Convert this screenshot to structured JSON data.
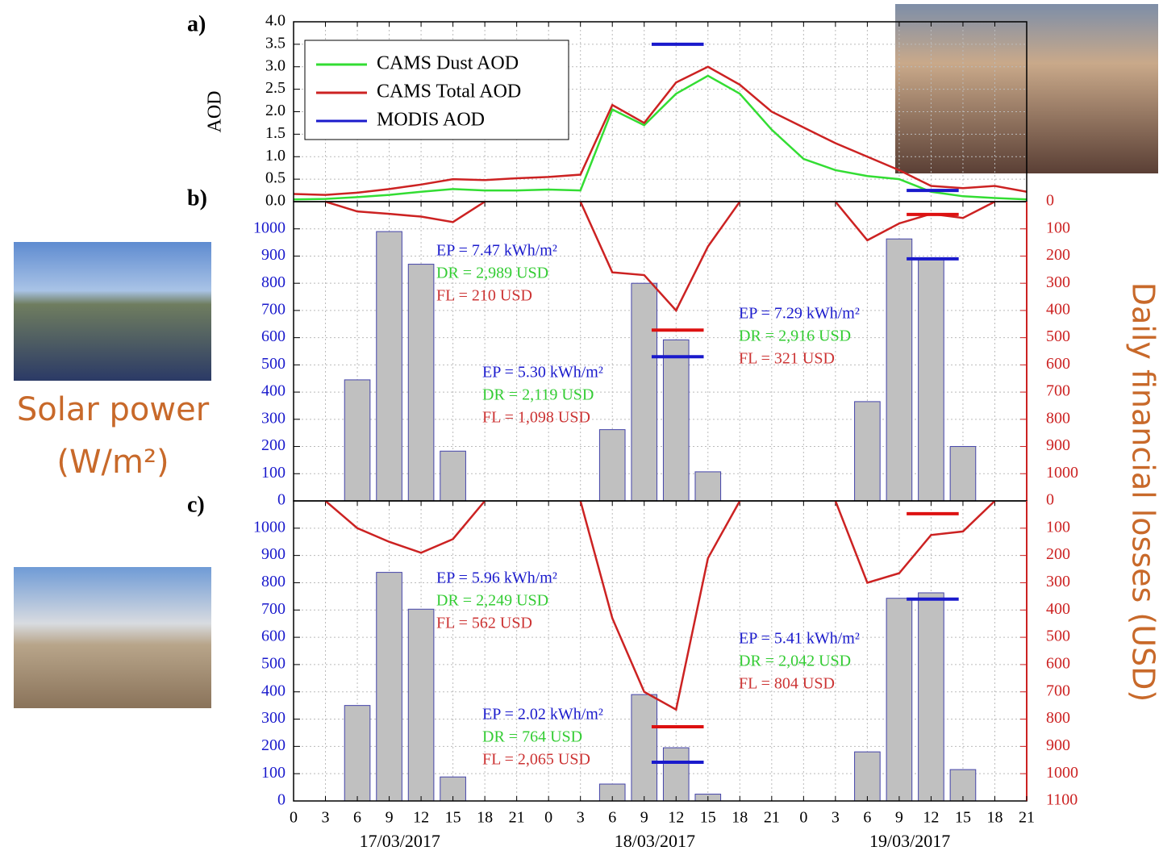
{
  "chart_data": [
    {
      "type": "line",
      "label": "a)",
      "ylabel": "AOD",
      "xlim": [
        0,
        69
      ],
      "ylim": [
        0,
        4
      ],
      "yticks": [
        {
          "value": 0,
          "label": "0.0"
        },
        0.5,
        {
          "value": 1,
          "label": "1.0"
        },
        1.5,
        {
          "value": 2,
          "label": "2.0"
        },
        2.5,
        {
          "value": 3,
          "label": "3.0"
        },
        3.5,
        {
          "value": 4,
          "label": "4.0"
        }
      ],
      "grid": true,
      "x": [
        0,
        3,
        6,
        9,
        12,
        15,
        18,
        21,
        24,
        27,
        30,
        33,
        36,
        39,
        42,
        45,
        48,
        51,
        54,
        57,
        60,
        63,
        66,
        69
      ],
      "series": [
        {
          "name": "CAMS Dust AOD",
          "color": "#33dd33",
          "values": [
            0.05,
            0.06,
            0.1,
            0.15,
            0.22,
            0.28,
            0.25,
            0.25,
            0.27,
            0.25,
            2.05,
            1.7,
            2.4,
            2.8,
            2.4,
            1.6,
            0.95,
            0.7,
            0.57,
            0.5,
            0.22,
            0.12,
            0.08,
            0.05
          ]
        },
        {
          "name": "CAMS Total AOD",
          "color": "#cc2222",
          "values": [
            0.17,
            0.15,
            0.2,
            0.28,
            0.38,
            0.5,
            0.48,
            0.52,
            0.55,
            0.6,
            2.15,
            1.75,
            2.65,
            3.0,
            2.6,
            2.0,
            1.65,
            1.3,
            1.0,
            0.7,
            0.35,
            0.3,
            0.35,
            0.22
          ]
        },
        {
          "name": "MODIS AOD",
          "color": "#1a1acc",
          "segments": [
            {
              "x": [
                33.7,
                38.6
              ],
              "value": 3.5
            },
            {
              "x": [
                57.7,
                62.6
              ],
              "value": 0.25
            }
          ]
        }
      ]
    },
    {
      "type": "bar",
      "label": "b)",
      "ylabel": [
        "Solar power",
        "(W/m²)"
      ],
      "y2label": "Daily financial losses  (USD)",
      "xlim": [
        0,
        69
      ],
      "ylim": [
        0,
        1100
      ],
      "yticks": [
        0,
        100,
        200,
        300,
        400,
        500,
        600,
        700,
        800,
        900,
        1000
      ],
      "y2lim": [
        0,
        1100
      ],
      "y2_inverted": true,
      "y2ticks": [
        0,
        100,
        200,
        300,
        400,
        500,
        600,
        700,
        800,
        900,
        1000
      ],
      "grid": true,
      "color": "#c0c0c0",
      "x": [
        6,
        9,
        12,
        15,
        30,
        33,
        36,
        39,
        54,
        57,
        60,
        63
      ],
      "values": [
        445,
        990,
        870,
        183,
        262,
        800,
        592,
        107,
        365,
        963,
        893,
        200
      ],
      "series": [
        {
          "axis": "y2",
          "color": "#cc2222",
          "x": [
            3,
            6,
            9,
            12,
            15,
            18,
            21,
            27,
            30,
            33,
            36,
            39,
            42,
            45,
            51,
            54,
            57,
            60,
            63,
            66
          ],
          "values": [
            0,
            36,
            45,
            55,
            75,
            0,
            null,
            0,
            260,
            270,
            400,
            165,
            0,
            null,
            0,
            142,
            80,
            45,
            60,
            0
          ]
        }
      ],
      "segments": [
        {
          "axis": "y2",
          "color": "#dd1111",
          "x": [
            33.7,
            38.6
          ],
          "value": 472
        },
        {
          "color": "#1a1acc",
          "x": [
            33.7,
            38.6
          ],
          "value": 530
        },
        {
          "axis": "y2",
          "color": "#dd1111",
          "x": [
            57.7,
            62.6
          ],
          "value": 47
        },
        {
          "color": "#1a1acc",
          "x": [
            57.7,
            62.6
          ],
          "value": 890
        }
      ],
      "annotations": [
        [
          "EP = 7.47 kWh/m²",
          "DR = 2,989 USD",
          "FL =  210 USD"
        ],
        [
          "EP = 5.30 kWh/m²",
          "DR = 2,119 USD",
          "FL =  1,098 USD"
        ],
        [
          "EP = 7.29 kWh/m²",
          "DR = 2,916 USD",
          "FL =  321 USD"
        ]
      ]
    },
    {
      "type": "bar",
      "label": "c)",
      "xlim": [
        0,
        69
      ],
      "ylim": [
        0,
        1100
      ],
      "yticks": [
        0,
        100,
        200,
        300,
        400,
        500,
        600,
        700,
        800,
        900,
        1000
      ],
      "y2lim": [
        0,
        1100
      ],
      "y2_inverted": true,
      "y2ticks": [
        0,
        100,
        200,
        300,
        400,
        500,
        600,
        700,
        800,
        900,
        1000,
        1100
      ],
      "grid": true,
      "color": "#c0c0c0",
      "xticks": [
        0,
        3,
        6,
        9,
        12,
        15,
        18,
        21,
        {
          "value": 24,
          "label": "0"
        },
        {
          "value": 27,
          "label": "3"
        },
        {
          "value": 30,
          "label": "6"
        },
        {
          "value": 33,
          "label": "9"
        },
        {
          "value": 36,
          "label": "12"
        },
        {
          "value": 39,
          "label": "15"
        },
        {
          "value": 42,
          "label": "18"
        },
        {
          "value": 45,
          "label": "21"
        },
        {
          "value": 48,
          "label": "0"
        },
        {
          "value": 51,
          "label": "3"
        },
        {
          "value": 54,
          "label": "6"
        },
        {
          "value": 57,
          "label": "9"
        },
        {
          "value": 60,
          "label": "12"
        },
        {
          "value": 63,
          "label": "15"
        },
        {
          "value": 66,
          "label": "18"
        },
        {
          "value": 69,
          "label": "21"
        }
      ],
      "date_labels": [
        "17/03/2017",
        "18/03/2017",
        "19/03/2017"
      ],
      "x": [
        6,
        9,
        12,
        15,
        30,
        33,
        36,
        39,
        54,
        57,
        60,
        63
      ],
      "values": [
        350,
        838,
        703,
        88,
        62,
        390,
        195,
        25,
        180,
        743,
        763,
        115
      ],
      "series": [
        {
          "axis": "y2",
          "color": "#cc2222",
          "x": [
            3,
            6,
            9,
            12,
            15,
            18,
            21,
            27,
            30,
            33,
            36,
            39,
            42,
            45,
            51,
            54,
            57,
            60,
            63,
            66
          ],
          "values": [
            0,
            100,
            150,
            190,
            140,
            0,
            null,
            0,
            430,
            700,
            765,
            210,
            0,
            null,
            0,
            300,
            265,
            125,
            112,
            0
          ]
        }
      ],
      "segments": [
        {
          "axis": "y2",
          "color": "#dd1111",
          "x": [
            33.7,
            38.6
          ],
          "value": 828
        },
        {
          "color": "#1a1acc",
          "x": [
            33.7,
            38.6
          ],
          "value": 142
        },
        {
          "axis": "y2",
          "color": "#dd1111",
          "x": [
            57.7,
            62.6
          ],
          "value": 47
        },
        {
          "color": "#1a1acc",
          "x": [
            57.7,
            62.6
          ],
          "value": 740
        }
      ],
      "annotations": [
        [
          "EP = 5.96 kWh/m²",
          "DR = 2,249 USD",
          "FL =  562 USD"
        ],
        [
          "EP = 2.02 kWh/m²",
          "DR = 764 USD",
          "FL =  2,065 USD"
        ],
        [
          "EP = 5.41 kWh/m²",
          "DR = 2,042 USD",
          "FL =  804 USD"
        ]
      ]
    }
  ]
}
